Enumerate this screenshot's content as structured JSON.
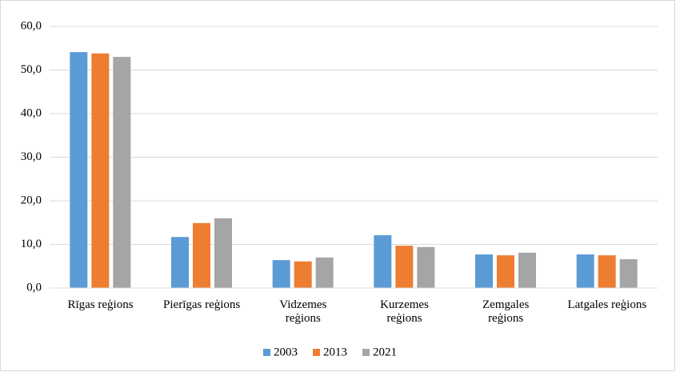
{
  "chart_data": {
    "type": "bar",
    "categories": [
      "Rīgas reģions",
      "Pierīgas reģions",
      "Vidzemes\nreģions",
      "Kurzemes\nreģions",
      "Zemgales\nreģions",
      "Latgales reģions"
    ],
    "series": [
      {
        "name": "2003",
        "color": "#5b9bd5",
        "values": [
          54.1,
          11.7,
          6.4,
          12.1,
          7.7,
          7.7
        ]
      },
      {
        "name": "2013",
        "color": "#ed7d31",
        "values": [
          53.8,
          14.9,
          6.1,
          9.7,
          7.5,
          7.5
        ]
      },
      {
        "name": "2021",
        "color": "#a5a5a5",
        "values": [
          53.0,
          16.0,
          7.0,
          9.4,
          8.1,
          6.6
        ]
      }
    ],
    "ylim": [
      0,
      60
    ],
    "yticks": [
      {
        "value": 0,
        "label": "0,0"
      },
      {
        "value": 10,
        "label": "10,0"
      },
      {
        "value": 20,
        "label": "20,0"
      },
      {
        "value": 30,
        "label": "30,0"
      },
      {
        "value": 40,
        "label": "40,0"
      },
      {
        "value": 50,
        "label": "50,0"
      },
      {
        "value": 60,
        "label": "60,0"
      }
    ],
    "grid": true,
    "legend": "bottom"
  }
}
